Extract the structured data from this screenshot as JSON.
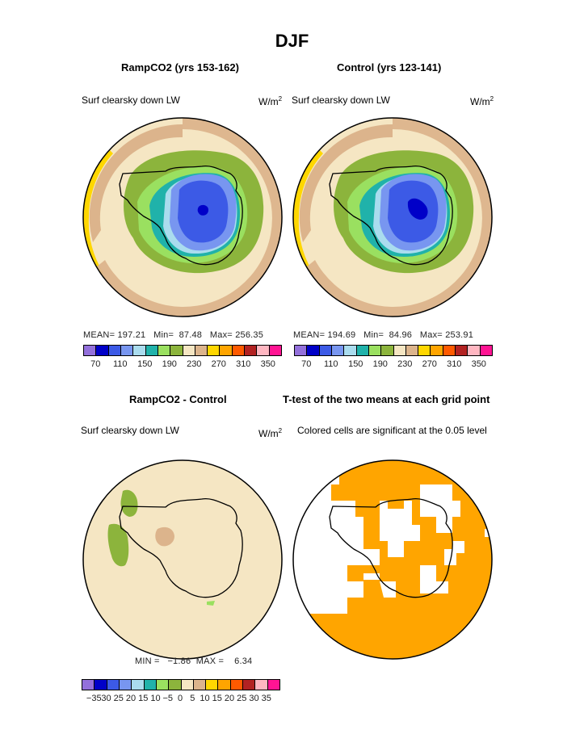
{
  "title": "DJF",
  "panels": {
    "ramp": {
      "title": "RampCO2 (yrs 153-162)",
      "variable": "Surf clearsky down LW",
      "units_base": "W/m",
      "units_exp": "2",
      "mean_label": "MEAN=",
      "mean": "197.21",
      "min_label": "Min=",
      "min": "87.48",
      "max_label": "Max=",
      "max": "256.35"
    },
    "control": {
      "title": "Control (yrs 123-141)",
      "variable": "Surf clearsky down LW",
      "units_base": "W/m",
      "units_exp": "2",
      "mean_label": "MEAN=",
      "mean": "194.69",
      "min_label": "Min=",
      "min": "84.96",
      "max_label": "Max=",
      "max": "253.91"
    },
    "diff": {
      "title": "RampCO2 - Control",
      "variable": "Surf clearsky down LW",
      "units_base": "W/m",
      "units_exp": "2",
      "min_label": "MIN =",
      "min": "−1.86",
      "max_label": "MAX =",
      "max": "6.34"
    },
    "ttest": {
      "title": "T-test of the two means at each grid point",
      "subtitle": "Colored cells are significant at the 0.05 level"
    }
  },
  "colorbar_main": {
    "colors": [
      "#9370db",
      "#0000c8",
      "#3c5ae6",
      "#7896f0",
      "#aadcee",
      "#20b2aa",
      "#9ae060",
      "#8cb43c",
      "#f5e6c3",
      "#dcb48c",
      "#ffd700",
      "#ffa500",
      "#ff5a00",
      "#b22222",
      "#ffb6c1",
      "#ff1493"
    ],
    "ticks": [
      "70",
      "110",
      "150",
      "190",
      "230",
      "270",
      "310",
      "350"
    ]
  },
  "colorbar_diff": {
    "colors": [
      "#9370db",
      "#0000c8",
      "#3c5ae6",
      "#7896f0",
      "#aadcee",
      "#20b2aa",
      "#9ae060",
      "#8cb43c",
      "#f5e6c3",
      "#dcb48c",
      "#ffd700",
      "#ffa500",
      "#ff5a00",
      "#b22222",
      "#ffb6c1",
      "#ff1493"
    ],
    "ticks": [
      "−35",
      "30",
      "25",
      "20",
      "15",
      "10",
      "−5",
      "0",
      "5",
      "10",
      "15",
      "20",
      "25",
      "30",
      "35"
    ]
  }
}
